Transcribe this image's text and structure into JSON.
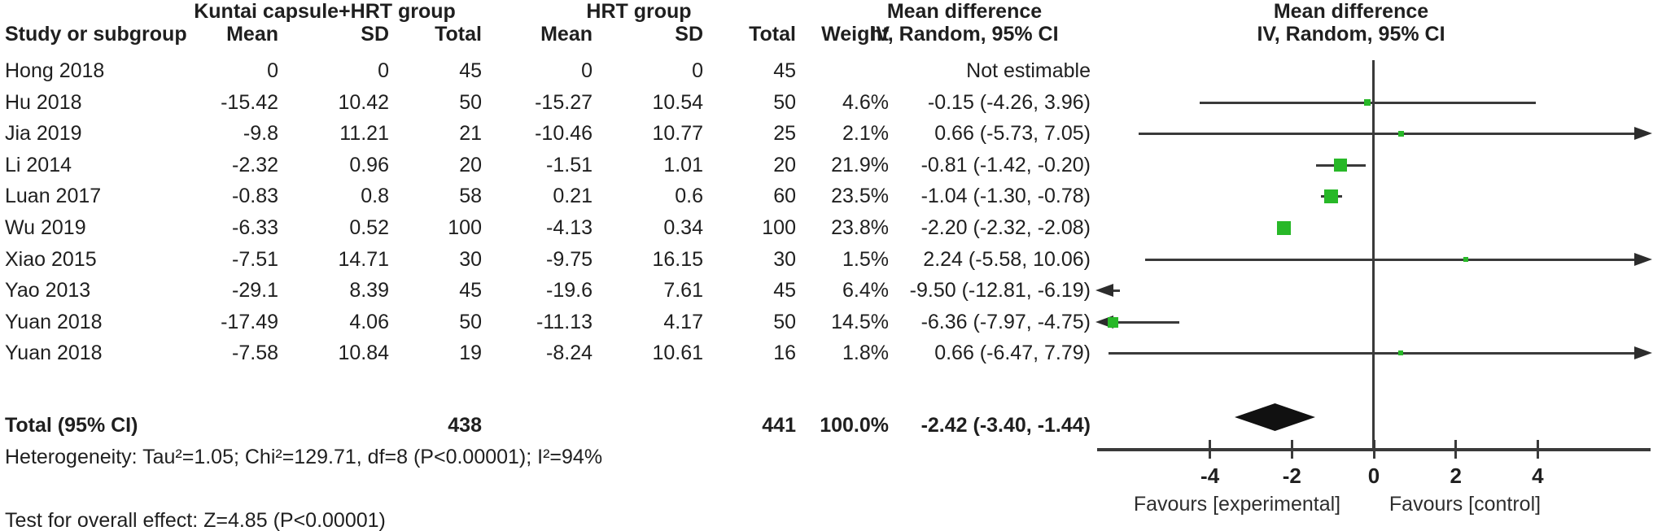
{
  "table": {
    "group_headers": {
      "experimental": "Kuntai capsule+HRT group",
      "control": "HRT group"
    },
    "headers": {
      "study": "Study or subgroup",
      "mean": "Mean",
      "sd": "SD",
      "total": "Total",
      "weight": "Weight",
      "md": "Mean difference",
      "ci": "IV, Random, 95% CI"
    },
    "rows": [
      {
        "study": "Hong 2018",
        "mean1": "0",
        "sd1": "0",
        "total1": "45",
        "mean2": "0",
        "sd2": "0",
        "total2": "45",
        "weight": "",
        "ci": "Not estimable"
      },
      {
        "study": "Hu 2018",
        "mean1": "-15.42",
        "sd1": "10.42",
        "total1": "50",
        "mean2": "-15.27",
        "sd2": "10.54",
        "total2": "50",
        "weight": "4.6%",
        "ci": "-0.15 (-4.26, 3.96)"
      },
      {
        "study": "Jia 2019",
        "mean1": "-9.8",
        "sd1": "11.21",
        "total1": "21",
        "mean2": "-10.46",
        "sd2": "10.77",
        "total2": "25",
        "weight": "2.1%",
        "ci": "0.66 (-5.73, 7.05)"
      },
      {
        "study": "Li 2014",
        "mean1": "-2.32",
        "sd1": "0.96",
        "total1": "20",
        "mean2": "-1.51",
        "sd2": "1.01",
        "total2": "20",
        "weight": "21.9%",
        "ci": "-0.81 (-1.42, -0.20)"
      },
      {
        "study": "Luan 2017",
        "mean1": "-0.83",
        "sd1": "0.8",
        "total1": "58",
        "mean2": "0.21",
        "sd2": "0.6",
        "total2": "60",
        "weight": "23.5%",
        "ci": "-1.04 (-1.30, -0.78)"
      },
      {
        "study": "Wu 2019",
        "mean1": "-6.33",
        "sd1": "0.52",
        "total1": "100",
        "mean2": "-4.13",
        "sd2": "0.34",
        "total2": "100",
        "weight": "23.8%",
        "ci": "-2.20 (-2.32, -2.08)"
      },
      {
        "study": "Xiao 2015",
        "mean1": "-7.51",
        "sd1": "14.71",
        "total1": "30",
        "mean2": "-9.75",
        "sd2": "16.15",
        "total2": "30",
        "weight": "1.5%",
        "ci": "2.24 (-5.58, 10.06)"
      },
      {
        "study": "Yao 2013",
        "mean1": "-29.1",
        "sd1": "8.39",
        "total1": "45",
        "mean2": "-19.6",
        "sd2": "7.61",
        "total2": "45",
        "weight": "6.4%",
        "ci": "-9.50 (-12.81, -6.19)"
      },
      {
        "study": "Yuan 2018",
        "mean1": "-17.49",
        "sd1": "4.06",
        "total1": "50",
        "mean2": "-11.13",
        "sd2": "4.17",
        "total2": "50",
        "weight": "14.5%",
        "ci": "-6.36 (-7.97, -4.75)"
      },
      {
        "study": "Yuan 2018",
        "mean1": "-7.58",
        "sd1": "10.84",
        "total1": "19",
        "mean2": "-8.24",
        "sd2": "10.61",
        "total2": "16",
        "weight": "1.8%",
        "ci": "0.66 (-6.47, 7.79)"
      }
    ],
    "total_row": {
      "label": "Total (95% CI)",
      "total1": "438",
      "total2": "441",
      "weight": "100.0%",
      "ci": "-2.42 (-3.40, -1.44)"
    },
    "heterogeneity": "Heterogeneity: Tau²=1.05; Chi²=129.71, df=8 (P<0.00001); I²=94%",
    "overall_effect": "Test for overall effect: Z=4.85 (P<0.00001)"
  },
  "plot": {
    "header_line1": "Mean difference",
    "header_line2": "IV, Random, 95% CI",
    "favours_left": "Favours [experimental]",
    "favours_right": "Favours [control]",
    "marker_color": "#28b828",
    "line_color": "#3a3a3a",
    "diamond_color": "#111111"
  },
  "chart_data": {
    "type": "forest",
    "title": "Mean difference, IV, Random, 95% CI",
    "categories": [
      "Hong 2018",
      "Hu 2018",
      "Jia 2019",
      "Li 2014",
      "Luan 2017",
      "Wu 2019",
      "Xiao 2015",
      "Yao 2013",
      "Yuan 2018",
      "Yuan 2018"
    ],
    "studies": [
      {
        "study": "Hong 2018",
        "md": null,
        "ci_low": null,
        "ci_high": null,
        "weight_pct": null,
        "note": "Not estimable"
      },
      {
        "study": "Hu 2018",
        "md": -0.15,
        "ci_low": -4.26,
        "ci_high": 3.96,
        "weight_pct": 4.6
      },
      {
        "study": "Jia 2019",
        "md": 0.66,
        "ci_low": -5.73,
        "ci_high": 7.05,
        "weight_pct": 2.1
      },
      {
        "study": "Li 2014",
        "md": -0.81,
        "ci_low": -1.42,
        "ci_high": -0.2,
        "weight_pct": 21.9
      },
      {
        "study": "Luan 2017",
        "md": -1.04,
        "ci_low": -1.3,
        "ci_high": -0.78,
        "weight_pct": 23.5
      },
      {
        "study": "Wu 2019",
        "md": -2.2,
        "ci_low": -2.32,
        "ci_high": -2.08,
        "weight_pct": 23.8
      },
      {
        "study": "Xiao 2015",
        "md": 2.24,
        "ci_low": -5.58,
        "ci_high": 10.06,
        "weight_pct": 1.5
      },
      {
        "study": "Yao 2013",
        "md": -9.5,
        "ci_low": -12.81,
        "ci_high": -6.19,
        "weight_pct": 6.4
      },
      {
        "study": "Yuan 2018",
        "md": -6.36,
        "ci_low": -7.97,
        "ci_high": -4.75,
        "weight_pct": 14.5
      },
      {
        "study": "Yuan 2018",
        "md": 0.66,
        "ci_low": -6.47,
        "ci_high": 7.79,
        "weight_pct": 1.8
      }
    ],
    "pooled": {
      "label": "Total (95% CI)",
      "md": -2.42,
      "ci_low": -3.4,
      "ci_high": -1.44,
      "weight_pct": 100.0,
      "n_experimental": 438,
      "n_control": 441
    },
    "xaxis": {
      "ticks": [
        -4,
        -2,
        0,
        2,
        4
      ],
      "range": [
        -6.75,
        6.75
      ],
      "zero_line": 0,
      "label_left": "Favours [experimental]",
      "label_right": "Favours [control]"
    },
    "heterogeneity": {
      "tau2": 1.05,
      "chi2": 129.71,
      "df": 8,
      "p": "<0.00001",
      "i2_pct": 94
    },
    "overall_effect": {
      "z": 4.85,
      "p": "<0.00001"
    }
  }
}
